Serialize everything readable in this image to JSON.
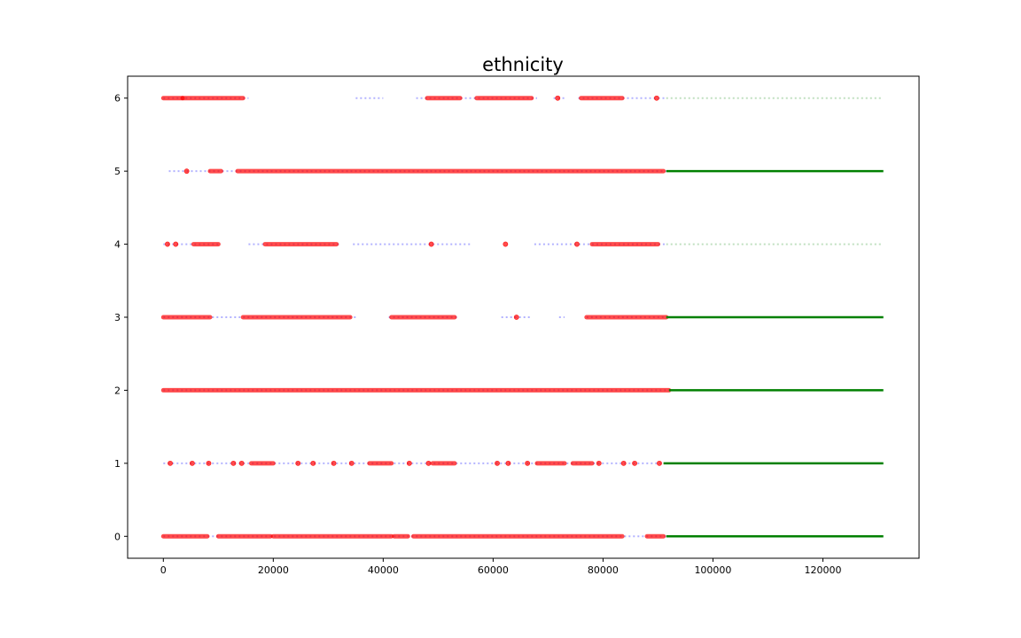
{
  "chart_data": {
    "type": "scatter",
    "title": "ethnicity",
    "xlabel": "",
    "ylabel": "",
    "xlim": [
      -6500,
      137500
    ],
    "ylim": [
      -0.3,
      6.3
    ],
    "xticks": [
      0,
      20000,
      40000,
      60000,
      80000,
      100000,
      120000
    ],
    "xtick_labels": [
      "0",
      "20000",
      "40000",
      "60000",
      "80000",
      "100000",
      "120000"
    ],
    "yticks": [
      0,
      1,
      2,
      3,
      4,
      5,
      6
    ],
    "ytick_labels": [
      "0",
      "1",
      "2",
      "3",
      "4",
      "5",
      "6"
    ],
    "grid": false,
    "legend": "none",
    "series": [
      {
        "color": "#0000ff",
        "alpha": 0.3,
        "marker": "small dot",
        "ranges": [
          {
            "y": 0,
            "segments": [
              [
                0,
                91500
              ]
            ]
          },
          {
            "y": 1,
            "segments": [
              [
                0,
                91000
              ]
            ]
          },
          {
            "y": 2,
            "segments": [
              [
                0,
                92000
              ]
            ]
          },
          {
            "y": 3,
            "segments": [
              [
                0,
                35000
              ],
              [
                41000,
                53500
              ],
              [
                61500,
                67000
              ],
              [
                72000,
                73000
              ],
              [
                77000,
                91500
              ]
            ]
          },
          {
            "y": 4,
            "segments": [
              [
                0,
                10500
              ],
              [
                15500,
                32000
              ],
              [
                34500,
                56000
              ],
              [
                67500,
                91500
              ]
            ]
          },
          {
            "y": 5,
            "segments": [
              [
                1000,
                91500
              ]
            ]
          },
          {
            "y": 6,
            "segments": [
              [
                0,
                15500
              ],
              [
                35000,
                40000
              ],
              [
                46000,
                68000
              ],
              [
                71000,
                73000
              ],
              [
                75500,
                91500
              ]
            ]
          }
        ]
      },
      {
        "color": "#ff0000",
        "alpha": 0.7,
        "marker": "circle",
        "ranges": [
          {
            "y": 0,
            "segments": [
              [
                0,
                8000
              ],
              [
                10000,
                19500
              ],
              [
                20000,
                41500
              ],
              [
                42000,
                44500
              ],
              [
                45500,
                83500
              ],
              [
                88000,
                91000
              ]
            ]
          },
          {
            "y": 1,
            "segments": [
              [
                1000,
                1500
              ],
              [
                5000,
                5500
              ],
              [
                8000,
                8500
              ],
              [
                12500,
                13000
              ],
              [
                14000,
                14500
              ],
              [
                16000,
                20000
              ],
              [
                24000,
                25000
              ],
              [
                27000,
                27500
              ],
              [
                30500,
                31500
              ],
              [
                34000,
                34500
              ],
              [
                37500,
                41500
              ],
              [
                44500,
                45000
              ],
              [
                48000,
                48500
              ],
              [
                49000,
                53000
              ],
              [
                60500,
                61000
              ],
              [
                62500,
                63000
              ],
              [
                66000,
                66500
              ],
              [
                68000,
                73000
              ],
              [
                74500,
                78000
              ],
              [
                79000,
                79500
              ],
              [
                83500,
                84000
              ],
              [
                85500,
                86000
              ],
              [
                90000,
                90500
              ]
            ]
          },
          {
            "y": 2,
            "segments": [
              [
                0,
                92000
              ]
            ]
          },
          {
            "y": 3,
            "segments": [
              [
                0,
                8500
              ],
              [
                14500,
                34000
              ],
              [
                41500,
                53000
              ],
              [
                64000,
                64500
              ],
              [
                77000,
                91500
              ]
            ]
          },
          {
            "y": 4,
            "segments": [
              [
                500,
                1000
              ],
              [
                2000,
                2500
              ],
              [
                5500,
                10000
              ],
              [
                18500,
                31500
              ],
              [
                48500,
                49000
              ],
              [
                62000,
                62500
              ],
              [
                75000,
                75500
              ],
              [
                78000,
                90000
              ]
            ]
          },
          {
            "y": 5,
            "segments": [
              [
                4000,
                4500
              ],
              [
                8500,
                10500
              ],
              [
                13500,
                91000
              ]
            ]
          },
          {
            "y": 6,
            "segments": [
              [
                0,
                3500
              ],
              [
                3500,
                14500
              ],
              [
                48000,
                54000
              ],
              [
                57000,
                67000
              ],
              [
                71500,
                72000
              ],
              [
                76000,
                83500
              ],
              [
                89500,
                90000
              ]
            ]
          }
        ]
      },
      {
        "color": "#008000",
        "alpha": 1.0,
        "marker": "small dot",
        "ranges": [
          {
            "y": 0,
            "segments": [
              [
                91500,
                131000
              ]
            ]
          },
          {
            "y": 1,
            "segments": [
              [
                91000,
                131000
              ]
            ]
          },
          {
            "y": 2,
            "segments": [
              [
                92000,
                131000
              ]
            ]
          },
          {
            "y": 3,
            "segments": [
              [
                91500,
                131000
              ]
            ]
          },
          {
            "y": 4,
            "segments": [
              [
                91500,
                131000
              ]
            ],
            "alpha": 0.25
          },
          {
            "y": 5,
            "segments": [
              [
                91500,
                131000
              ]
            ]
          },
          {
            "y": 6,
            "segments": [
              [
                91500,
                131000
              ]
            ],
            "alpha": 0.25
          }
        ]
      }
    ]
  }
}
